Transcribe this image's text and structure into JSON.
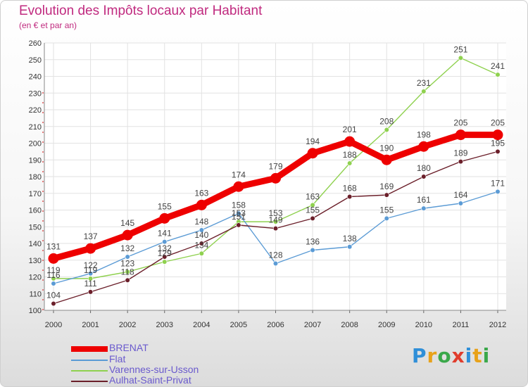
{
  "title": "Evolution des Impôts locaux par Habitant",
  "subtitle": "(en € et par an)",
  "logo": {
    "letters": [
      "P",
      "r",
      "o",
      "x",
      "i",
      "t",
      "i"
    ],
    "colors": [
      "#2f8fd8",
      "#e8a21a",
      "#3aa84a",
      "#e03c2c",
      "#2f8fd8",
      "#e8a21a",
      "#3aa84a"
    ]
  },
  "chart_data": {
    "type": "line",
    "title": "Evolution des Impôts locaux par Habitant",
    "subtitle": "(en € et par an)",
    "x": [
      "2000",
      "2001",
      "2002",
      "2003",
      "2004",
      "2005",
      "2006",
      "2007",
      "2008",
      "2009",
      "2010",
      "2011",
      "2012"
    ],
    "ylim": [
      100,
      260
    ],
    "yticks": [
      100,
      110,
      120,
      130,
      140,
      150,
      160,
      170,
      180,
      190,
      200,
      210,
      220,
      230,
      240,
      250,
      260
    ],
    "grid": true,
    "legend_position": "bottom-left",
    "series": [
      {
        "name": "BRENAT",
        "color": "#ee0000",
        "values": [
          131,
          137,
          145,
          155,
          163,
          174,
          179,
          194,
          201,
          190,
          198,
          205,
          205
        ]
      },
      {
        "name": "Flat",
        "color": "#5b9bd5",
        "values": [
          116,
          122,
          132,
          141,
          148,
          158,
          128,
          136,
          138,
          155,
          161,
          164,
          171
        ]
      },
      {
        "name": "Varennes-sur-Usson",
        "color": "#8fd14f",
        "values": [
          119,
          119,
          123,
          129,
          134,
          153,
          153,
          163,
          188,
          208,
          231,
          251,
          241
        ]
      },
      {
        "name": "Aulhat-Saint-Privat",
        "color": "#6b1f2a",
        "values": [
          104,
          111,
          118,
          132,
          140,
          151,
          149,
          155,
          168,
          169,
          180,
          189,
          195
        ]
      }
    ]
  }
}
